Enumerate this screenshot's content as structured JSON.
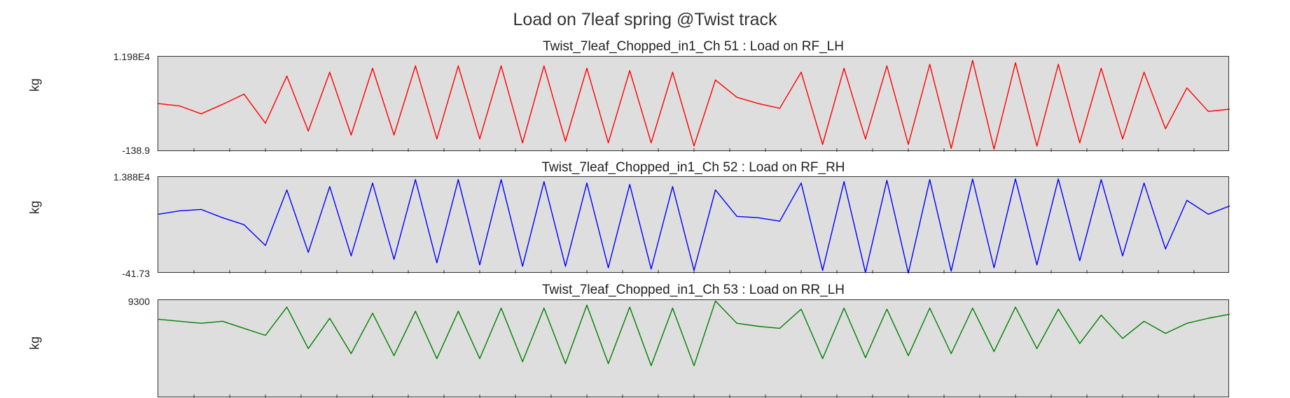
{
  "title": "Load on 7leaf spring @Twist track",
  "chart_data": [
    {
      "type": "line",
      "title": "Twist_7leaf_Chopped_in1_Ch 51 : Load on RF_LH",
      "ylabel": "kg",
      "ytick_labels": [
        "1.198E4",
        "-138.9"
      ],
      "ylim": [
        -138.9,
        11980
      ],
      "color": "#ff0000",
      "grid": false,
      "series": [
        {
          "x": [
            0,
            2,
            4,
            6,
            8,
            10,
            12,
            14,
            16,
            18,
            20,
            22,
            24,
            26,
            28,
            30,
            32,
            34,
            36,
            38,
            40,
            42,
            44,
            46,
            48,
            50,
            52,
            54,
            56,
            58,
            60,
            62,
            64,
            66,
            68,
            70,
            72,
            74,
            76,
            78,
            80,
            82,
            84,
            86,
            88,
            90,
            92,
            94,
            96,
            98,
            100
          ],
          "values": [
            6000,
            5700,
            4700,
            5900,
            7200,
            3500,
            9500,
            2500,
            10000,
            2000,
            10500,
            2000,
            10800,
            1500,
            10800,
            1500,
            10800,
            1000,
            10800,
            1200,
            10500,
            1000,
            10200,
            1000,
            10000,
            600,
            9000,
            6800,
            6000,
            5400,
            10000,
            800,
            10500,
            1500,
            10800,
            800,
            11000,
            300,
            11500,
            200,
            11200,
            600,
            11000,
            1000,
            10500,
            1500,
            10000,
            2800,
            8000,
            5000,
            5300
          ]
        }
      ]
    },
    {
      "type": "line",
      "title": "Twist_7leaf_Chopped_in1_Ch 52 : Load on RF_RH",
      "ylabel": "kg",
      "ytick_labels": [
        "1.388E4",
        "-41.73"
      ],
      "ylim": [
        -41.73,
        13880
      ],
      "color": "#0000ff",
      "grid": false,
      "series": [
        {
          "x": [
            0,
            2,
            4,
            6,
            8,
            10,
            12,
            14,
            16,
            18,
            20,
            22,
            24,
            26,
            28,
            30,
            32,
            34,
            36,
            38,
            40,
            42,
            44,
            46,
            48,
            50,
            52,
            54,
            56,
            58,
            60,
            62,
            64,
            66,
            68,
            70,
            72,
            74,
            76,
            78,
            80,
            82,
            84,
            86,
            88,
            90,
            92,
            94,
            96,
            98,
            100
          ],
          "values": [
            8500,
            9000,
            9200,
            8000,
            7000,
            4000,
            12000,
            3000,
            12500,
            2500,
            13000,
            2000,
            13500,
            1500,
            13500,
            1200,
            13500,
            1000,
            13200,
            1000,
            13000,
            800,
            12800,
            600,
            12500,
            400,
            12000,
            8200,
            8000,
            7500,
            13000,
            400,
            13200,
            100,
            13400,
            0,
            13500,
            300,
            13600,
            800,
            13600,
            1200,
            13600,
            1800,
            13500,
            2500,
            13000,
            3500,
            10500,
            8500,
            9700
          ]
        }
      ]
    },
    {
      "type": "line",
      "title": "Twist_7leaf_Chopped_in1_Ch 53 : Load on RR_LH",
      "ylabel": "kg",
      "ytick_labels": [
        "9300"
      ],
      "ylim": [
        -400,
        9300
      ],
      "color": "#008000",
      "grid": false,
      "series": [
        {
          "x": [
            0,
            2,
            4,
            6,
            8,
            10,
            12,
            14,
            16,
            18,
            20,
            22,
            24,
            26,
            28,
            30,
            32,
            34,
            36,
            38,
            40,
            42,
            44,
            46,
            48,
            50,
            52,
            54,
            56,
            58,
            60,
            62,
            64,
            66,
            68,
            70,
            72,
            74,
            76,
            78,
            80,
            82,
            84,
            86,
            88,
            90,
            92,
            94,
            96,
            98,
            100
          ],
          "values": [
            7400,
            7200,
            7000,
            7200,
            6500,
            5800,
            8600,
            4500,
            7500,
            4000,
            8000,
            3800,
            8200,
            3500,
            8200,
            3500,
            8500,
            3200,
            8500,
            3000,
            8800,
            3000,
            8600,
            2800,
            8500,
            2800,
            9200,
            7000,
            6700,
            6500,
            8400,
            3500,
            8500,
            3600,
            8400,
            3800,
            8500,
            4000,
            8500,
            4200,
            8600,
            4500,
            8400,
            5000,
            7800,
            5500,
            7200,
            6000,
            7000,
            7500,
            7900
          ]
        }
      ]
    }
  ]
}
